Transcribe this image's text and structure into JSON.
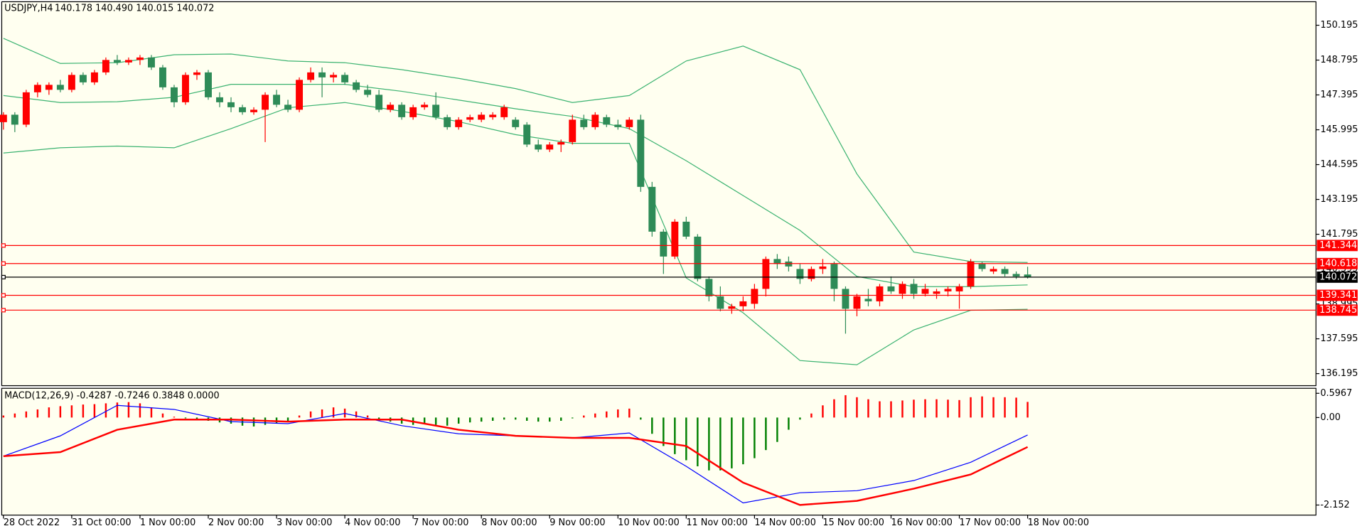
{
  "chart_data": [
    {
      "type": "candlestick",
      "title": "USDJPY,H4",
      "subtitle": "140.178 140.490 140.015 140.072",
      "up_color": "#ff0000",
      "down_color": "#2e8b57",
      "open": [
        146.3,
        146.6,
        146.2,
        147.5,
        147.6,
        147.8,
        147.6,
        148.2,
        147.9,
        148.3,
        148.8,
        148.7,
        148.8,
        148.9,
        148.5,
        147.7,
        147.1,
        148.2,
        148.3,
        147.3,
        147.1,
        146.9,
        146.7,
        146.8,
        147.4,
        147.0,
        146.8,
        148.0,
        148.3,
        148.1,
        148.2,
        147.9,
        147.6,
        147.4,
        146.8,
        147.0,
        146.5,
        146.9,
        147.0,
        146.5,
        146.1,
        146.4,
        146.4,
        146.5,
        146.5,
        146.4,
        146.2,
        145.4,
        145.2,
        145.4,
        145.5,
        146.4,
        146.1,
        146.5,
        146.2,
        146.1,
        146.4,
        143.7,
        141.9,
        140.9,
        142.3,
        141.7,
        140.0,
        139.3,
        138.8,
        138.9,
        139.0,
        139.6,
        140.8,
        140.7,
        140.4,
        140.0,
        140.4,
        140.6,
        139.6,
        138.8,
        139.2,
        139.1,
        139.7,
        139.4,
        139.8,
        139.4,
        139.4,
        139.5,
        139.5,
        139.7,
        140.6,
        140.3,
        140.4,
        140.2,
        140.178
      ],
      "high": [
        146.7,
        146.7,
        147.6,
        147.9,
        147.9,
        148.0,
        148.3,
        148.3,
        148.4,
        148.9,
        149.0,
        148.9,
        149.0,
        149.0,
        148.6,
        147.8,
        148.3,
        148.4,
        148.4,
        147.5,
        147.3,
        147.0,
        146.9,
        147.5,
        147.6,
        147.2,
        148.1,
        148.5,
        148.5,
        148.3,
        148.3,
        148.0,
        147.8,
        147.6,
        147.1,
        147.1,
        147.0,
        147.1,
        147.5,
        146.6,
        146.5,
        146.6,
        146.7,
        146.7,
        147.0,
        146.5,
        146.3,
        145.6,
        145.5,
        145.6,
        146.6,
        146.6,
        146.7,
        146.6,
        146.4,
        146.5,
        146.6,
        143.9,
        142.0,
        142.4,
        142.5,
        141.8,
        140.1,
        139.7,
        139.0,
        139.3,
        139.8,
        140.9,
        141.0,
        140.9,
        140.6,
        140.5,
        140.8,
        140.7,
        139.7,
        139.4,
        139.6,
        139.8,
        140.1,
        139.9,
        140.0,
        139.8,
        139.6,
        139.7,
        139.8,
        140.8,
        140.7,
        140.5,
        140.5,
        140.3,
        140.49
      ],
      "low": [
        146.0,
        145.9,
        146.1,
        147.3,
        147.4,
        147.5,
        147.5,
        147.8,
        147.8,
        148.2,
        148.6,
        148.6,
        148.6,
        148.4,
        147.6,
        146.9,
        147.0,
        148.0,
        147.2,
        146.9,
        146.7,
        146.6,
        146.6,
        145.5,
        146.9,
        146.7,
        146.7,
        147.9,
        147.3,
        147.9,
        147.8,
        147.5,
        147.3,
        146.7,
        146.7,
        146.4,
        146.4,
        146.8,
        146.4,
        146.0,
        146.0,
        146.3,
        146.3,
        146.4,
        146.4,
        146.0,
        145.3,
        145.1,
        145.1,
        145.1,
        145.4,
        146.0,
        146.0,
        146.1,
        146.0,
        146.0,
        143.5,
        141.7,
        140.2,
        140.8,
        141.6,
        139.9,
        139.1,
        138.7,
        138.6,
        138.7,
        138.8,
        139.3,
        140.4,
        140.3,
        139.8,
        139.9,
        140.2,
        139.1,
        137.8,
        138.5,
        138.9,
        138.9,
        139.4,
        139.2,
        139.2,
        139.3,
        139.2,
        139.3,
        138.8,
        139.6,
        140.3,
        140.2,
        140.1,
        140.0,
        140.015
      ],
      "close": [
        146.6,
        146.2,
        147.5,
        147.8,
        147.8,
        147.6,
        148.2,
        147.9,
        148.3,
        148.8,
        148.7,
        148.8,
        148.9,
        148.5,
        147.7,
        147.1,
        148.2,
        148.3,
        147.3,
        147.1,
        146.9,
        146.7,
        146.8,
        147.4,
        147.0,
        146.8,
        148.0,
        148.3,
        148.1,
        148.2,
        147.9,
        147.6,
        147.4,
        146.8,
        147.0,
        146.5,
        146.9,
        147.0,
        146.5,
        146.1,
        146.4,
        146.5,
        146.6,
        146.6,
        146.9,
        146.1,
        145.4,
        145.2,
        145.4,
        145.5,
        146.4,
        146.1,
        146.6,
        146.2,
        146.1,
        146.4,
        143.7,
        141.9,
        140.9,
        142.3,
        141.7,
        140.0,
        139.3,
        138.8,
        138.9,
        139.1,
        139.6,
        140.8,
        140.6,
        140.5,
        140.0,
        140.4,
        140.5,
        139.6,
        138.8,
        139.3,
        139.1,
        139.7,
        139.5,
        139.8,
        139.4,
        139.6,
        139.5,
        139.6,
        139.7,
        140.7,
        140.4,
        140.4,
        140.2,
        140.1,
        140.072
      ],
      "series": [
        {
          "color": "#3cb371",
          "x": [
            0,
            5,
            10,
            15,
            20,
            25,
            30,
            35,
            40,
            45,
            50,
            55,
            60,
            65,
            70,
            75,
            80,
            85,
            90
          ],
          "values": [
            149.67,
            148.66,
            148.69,
            149.01,
            149.04,
            148.76,
            148.69,
            148.41,
            148.06,
            147.65,
            147.09,
            147.37,
            148.76,
            149.36,
            148.41,
            144.22,
            141.08,
            140.7,
            140.66
          ]
        },
        {
          "color": "#3cb371",
          "x": [
            0,
            5,
            10,
            15,
            20,
            25,
            30,
            35,
            40,
            45,
            50,
            55,
            60,
            65,
            70,
            75,
            80,
            85,
            90
          ],
          "values": [
            147.37,
            147.09,
            147.12,
            147.3,
            147.82,
            147.82,
            147.82,
            147.54,
            147.19,
            146.84,
            146.53,
            146.04,
            144.75,
            143.35,
            141.95,
            140.1,
            139.69,
            139.69,
            139.76
          ]
        },
        {
          "color": "#3cb371",
          "x": [
            0,
            5,
            10,
            15,
            20,
            25,
            30,
            35,
            40,
            45,
            50,
            55,
            60,
            65,
            70,
            75,
            80,
            85,
            90
          ],
          "values": [
            145.06,
            145.27,
            145.34,
            145.27,
            146.04,
            146.88,
            147.09,
            146.74,
            146.32,
            145.8,
            145.45,
            145.45,
            140.04,
            138.64,
            136.72,
            136.55,
            137.95,
            138.74,
            138.78
          ]
        }
      ],
      "hlines": [
        {
          "value": 141.344,
          "color": "#ff0000"
        },
        {
          "value": 140.618,
          "color": "#ff0000"
        },
        {
          "value": 140.072,
          "color": "#000000"
        },
        {
          "value": 139.341,
          "color": "#ff0000"
        },
        {
          "value": 138.745,
          "color": "#ff0000"
        }
      ],
      "xlim": [
        -0.15,
        115.34
      ],
      "ylim": [
        135.71,
        151.14
      ],
      "yticks": [
        150.195,
        148.795,
        147.395,
        145.995,
        144.595,
        143.195,
        141.795,
        140.395,
        138.995,
        137.595,
        136.195
      ],
      "xticks": [
        {
          "value": 0,
          "label": "28 Oct 2022"
        },
        {
          "value": 6,
          "label": "31 Oct 00:00"
        },
        {
          "value": 12,
          "label": "1 Nov 00:00"
        },
        {
          "value": 18,
          "label": "2 Nov 00:00"
        },
        {
          "value": 24,
          "label": "3 Nov 00:00"
        },
        {
          "value": 30,
          "label": "4 Nov 00:00"
        },
        {
          "value": 36,
          "label": "7 Nov 00:00"
        },
        {
          "value": 42,
          "label": "8 Nov 00:00"
        },
        {
          "value": 48,
          "label": "9 Nov 00:00"
        },
        {
          "value": 54,
          "label": "10 Nov 00:00"
        },
        {
          "value": 60,
          "label": "11 Nov 00:00"
        },
        {
          "value": 66,
          "label": "14 Nov 00:00"
        },
        {
          "value": 72,
          "label": "15 Nov 00:00"
        },
        {
          "value": 78,
          "label": "16 Nov 00:00"
        },
        {
          "value": 84,
          "label": "17 Nov 00:00"
        },
        {
          "value": 90,
          "label": "18 Nov 00:00"
        }
      ]
    },
    {
      "type": "macd",
      "title": "MACD(12,26,9) -0.4287 -0.7246 0.3848 0.0000",
      "up_color": "#ff0000",
      "down_color": "#008000",
      "values": [
        0.05,
        0.1,
        0.15,
        0.2,
        0.25,
        0.28,
        0.3,
        0.32,
        0.33,
        0.35,
        0.37,
        0.38,
        0.35,
        0.25,
        0.1,
        0.02,
        -0.02,
        -0.03,
        -0.08,
        -0.12,
        -0.15,
        -0.2,
        -0.22,
        -0.18,
        -0.15,
        -0.1,
        0.05,
        0.15,
        0.2,
        0.25,
        0.22,
        0.15,
        0.05,
        -0.05,
        -0.1,
        -0.15,
        -0.18,
        -0.15,
        -0.18,
        -0.2,
        -0.15,
        -0.12,
        -0.1,
        -0.08,
        -0.05,
        -0.05,
        -0.08,
        -0.1,
        -0.1,
        -0.08,
        -0.02,
        0.05,
        0.1,
        0.15,
        0.2,
        0.22,
        -0.05,
        -0.4,
        -0.7,
        -0.9,
        -1.05,
        -1.2,
        -1.3,
        -1.3,
        -1.25,
        -1.15,
        -1.0,
        -0.8,
        -0.6,
        -0.3,
        -0.05,
        0.1,
        0.3,
        0.45,
        0.55,
        0.5,
        0.45,
        0.4,
        0.4,
        0.42,
        0.44,
        0.45,
        0.45,
        0.44,
        0.43,
        0.5,
        0.52,
        0.5,
        0.5,
        0.49,
        0.3848
      ],
      "series": [
        {
          "color": "#0000ff",
          "x": [
            0,
            5,
            10,
            15,
            20,
            25,
            30,
            35,
            40,
            45,
            50,
            55,
            60,
            65,
            70,
            75,
            80,
            85,
            90
          ],
          "values": [
            -0.95,
            -0.45,
            0.3,
            0.2,
            -0.1,
            -0.15,
            0.1,
            -0.2,
            -0.4,
            -0.45,
            -0.5,
            -0.38,
            -1.2,
            -2.1,
            -1.85,
            -1.8,
            -1.55,
            -1.1,
            -0.4287
          ]
        },
        {
          "color": "#ff0000",
          "x": [
            0,
            5,
            10,
            15,
            20,
            25,
            30,
            35,
            40,
            45,
            50,
            55,
            60,
            65,
            70,
            75,
            80,
            85,
            90
          ],
          "values": [
            -0.95,
            -0.85,
            -0.3,
            -0.05,
            -0.05,
            -0.1,
            -0.05,
            -0.05,
            -0.3,
            -0.45,
            -0.5,
            -0.5,
            -0.7,
            -1.6,
            -2.15,
            -2.05,
            -1.75,
            -1.4,
            -0.7246
          ]
        }
      ],
      "xlim": [
        -0.15,
        115.34
      ],
      "ylim": [
        -2.4,
        0.72
      ],
      "yticks": [
        0.5967,
        {
          "value": 0,
          "label": "0.00"
        },
        -2.152
      ]
    }
  ]
}
